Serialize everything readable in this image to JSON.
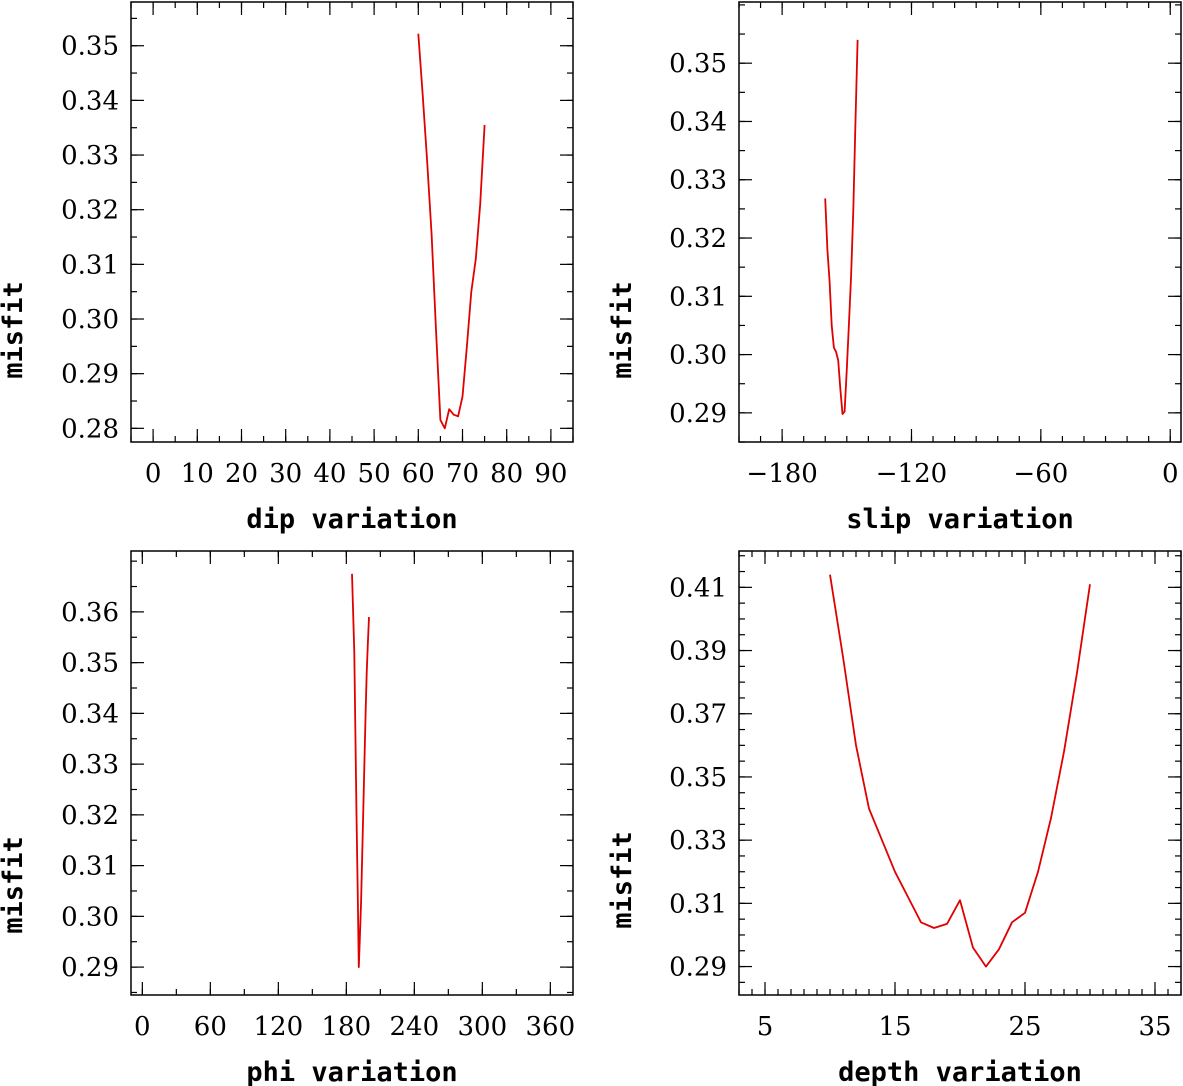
{
  "chart_data": [
    {
      "id": "dip",
      "type": "line",
      "xlabel": "dip variation",
      "ylabel": "misfit",
      "xlim": [
        -5,
        95
      ],
      "ylim": [
        0.2775,
        0.358
      ],
      "xticks": [
        0,
        10,
        20,
        30,
        40,
        50,
        60,
        70,
        80,
        90
      ],
      "xtick_labels": [
        "0",
        "10",
        "20",
        "30",
        "40",
        "50",
        "60",
        "70",
        "80",
        "90"
      ],
      "xminor": 5,
      "yticks": [
        0.28,
        0.29,
        0.3,
        0.31,
        0.32,
        0.33,
        0.34,
        0.35
      ],
      "ytick_labels": [
        "0.28",
        "0.29",
        "0.30",
        "0.31",
        "0.32",
        "0.33",
        "0.34",
        "0.35"
      ],
      "yminor": 0.005,
      "series": [
        {
          "name": "misfit",
          "color": "#e00000",
          "x": [
            60,
            61,
            62,
            63,
            64,
            65,
            66,
            67,
            68,
            69,
            70,
            71,
            72,
            73,
            74,
            75
          ],
          "y": [
            0.3522,
            0.341,
            0.329,
            0.3155,
            0.298,
            0.2815,
            0.28,
            0.2835,
            0.2825,
            0.2822,
            0.2858,
            0.295,
            0.305,
            0.311,
            0.321,
            0.3355
          ]
        }
      ]
    },
    {
      "id": "slip",
      "type": "line",
      "xlabel": "slip variation",
      "ylabel": "misfit",
      "xlim": [
        -200,
        5
      ],
      "ylim": [
        0.285,
        0.3605
      ],
      "xticks": [
        -180,
        -120,
        -60,
        0
      ],
      "xtick_labels": [
        "−180",
        "−120",
        "−60",
        "0"
      ],
      "xminor": 10,
      "yticks": [
        0.29,
        0.3,
        0.31,
        0.32,
        0.33,
        0.34,
        0.35
      ],
      "ytick_labels": [
        "0.29",
        "0.30",
        "0.31",
        "0.32",
        "0.33",
        "0.34",
        "0.35"
      ],
      "yminor": 0.005,
      "series": [
        {
          "name": "misfit",
          "color": "#e00000",
          "x": [
            -160,
            -159,
            -158,
            -157,
            -156,
            -155,
            -154,
            -153,
            -152,
            -151,
            -150,
            -149,
            -148,
            -147,
            -146,
            -145
          ],
          "y": [
            0.3268,
            0.318,
            0.3125,
            0.305,
            0.3012,
            0.3005,
            0.299,
            0.2942,
            0.2898,
            0.2902,
            0.2975,
            0.3055,
            0.3135,
            0.3248,
            0.3395,
            0.354
          ]
        }
      ]
    },
    {
      "id": "phi",
      "type": "line",
      "xlabel": "phi variation",
      "ylabel": "misfit",
      "xlim": [
        -10,
        380
      ],
      "ylim": [
        0.2845,
        0.372
      ],
      "xticks": [
        0,
        60,
        120,
        180,
        240,
        300,
        360
      ],
      "xtick_labels": [
        "0",
        "60",
        "120",
        "180",
        "240",
        "300",
        "360"
      ],
      "xminor": 30,
      "yticks": [
        0.29,
        0.3,
        0.31,
        0.32,
        0.33,
        0.34,
        0.35,
        0.36
      ],
      "ytick_labels": [
        "0.29",
        "0.30",
        "0.31",
        "0.32",
        "0.33",
        "0.34",
        "0.35",
        "0.36"
      ],
      "yminor": 0.005,
      "series": [
        {
          "name": "misfit",
          "color": "#e00000",
          "x": [
            185,
            187,
            188,
            189,
            190,
            191,
            192,
            193,
            194,
            195,
            196,
            197,
            198,
            199,
            200
          ],
          "y": [
            0.3675,
            0.352,
            0.336,
            0.32,
            0.305,
            0.29,
            0.296,
            0.303,
            0.312,
            0.321,
            0.331,
            0.34,
            0.348,
            0.354,
            0.359
          ]
        }
      ]
    },
    {
      "id": "depth",
      "type": "line",
      "xlabel": "depth variation",
      "ylabel": "misfit",
      "xlim": [
        3,
        37
      ],
      "ylim": [
        0.281,
        0.4215
      ],
      "xticks": [
        5,
        15,
        25,
        35
      ],
      "xtick_labels": [
        "5",
        "15",
        "25",
        "35"
      ],
      "xminor": 1,
      "yticks": [
        0.29,
        0.31,
        0.33,
        0.35,
        0.37,
        0.39,
        0.41
      ],
      "ytick_labels": [
        "0.29",
        "0.31",
        "0.33",
        "0.35",
        "0.37",
        "0.39",
        "0.41"
      ],
      "yminor": 0.005,
      "series": [
        {
          "name": "misfit",
          "color": "#e00000",
          "x": [
            10,
            11,
            12,
            13,
            14,
            15,
            16,
            17,
            18,
            19,
            20,
            21,
            22,
            23,
            24,
            25,
            26,
            27,
            28,
            29,
            30
          ],
          "y": [
            0.414,
            0.388,
            0.36,
            0.34,
            0.33,
            0.32,
            0.312,
            0.304,
            0.3022,
            0.3035,
            0.311,
            0.296,
            0.29,
            0.2955,
            0.304,
            0.307,
            0.32,
            0.337,
            0.358,
            0.383,
            0.411
          ]
        }
      ]
    }
  ]
}
